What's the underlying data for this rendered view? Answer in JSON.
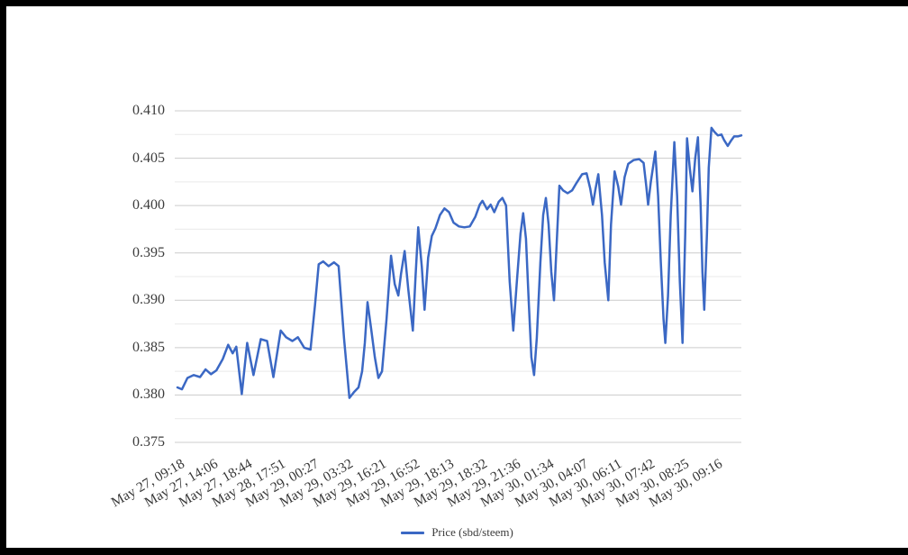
{
  "frame": {
    "border_color": "#000000",
    "background": "#ffffff"
  },
  "chart_data": {
    "type": "line",
    "title": "",
    "xlabel": "",
    "ylabel": "",
    "ylim": [
      0.375,
      0.41
    ],
    "y_ticks": [
      "0.375",
      "0.380",
      "0.385",
      "0.390",
      "0.395",
      "0.400",
      "0.405",
      "0.410"
    ],
    "y_minor_step": 0.0025,
    "grid": {
      "major_color": "#cccccc",
      "minor_color": "#e9e9e9",
      "vertical_gridlines": false
    },
    "axis_text_color": "#3c3c3c",
    "x_label_rotation_deg": -30,
    "x_labels": [
      "May 27, 09:18",
      "May 27, 14:06",
      "May 27, 18:44",
      "May 28, 17:51",
      "May 29, 00:27",
      "May 29, 03:32",
      "May 29, 16:21",
      "May 29, 16:52",
      "May 29, 18:13",
      "May 29, 18:32",
      "May 29, 21:36",
      "May 30, 01:34",
      "May 30, 04:07",
      "May 30, 06:11",
      "May 30, 07:42",
      "May 30, 08:25",
      "May 30, 09:16"
    ],
    "legend": {
      "position": "bottom",
      "label": "Price (sbd/steem)"
    },
    "series": [
      {
        "name": "Price (sbd/steem)",
        "color": "#3b68c4",
        "points": [
          [
            3,
            0.3808
          ],
          [
            8,
            0.3806
          ],
          [
            14,
            0.3818
          ],
          [
            21,
            0.3821
          ],
          [
            28,
            0.3819
          ],
          [
            34,
            0.3827
          ],
          [
            40,
            0.3822
          ],
          [
            46,
            0.3826
          ],
          [
            53,
            0.3838
          ],
          [
            59,
            0.3853
          ],
          [
            64,
            0.3844
          ],
          [
            68,
            0.3851
          ],
          [
            74,
            0.3801
          ],
          [
            80,
            0.3855
          ],
          [
            87,
            0.3821
          ],
          [
            95,
            0.3859
          ],
          [
            102,
            0.3857
          ],
          [
            109,
            0.3819
          ],
          [
            117,
            0.3868
          ],
          [
            123,
            0.3861
          ],
          [
            130,
            0.3857
          ],
          [
            136,
            0.3861
          ],
          [
            143,
            0.385
          ],
          [
            150,
            0.3848
          ],
          [
            155,
            0.3895
          ],
          [
            159,
            0.3938
          ],
          [
            164,
            0.3941
          ],
          [
            170,
            0.3936
          ],
          [
            176,
            0.394
          ],
          [
            181,
            0.3936
          ],
          [
            187,
            0.386
          ],
          [
            193,
            0.3797
          ],
          [
            198,
            0.3803
          ],
          [
            203,
            0.3808
          ],
          [
            207,
            0.3825
          ],
          [
            210,
            0.3855
          ],
          [
            213,
            0.3898
          ],
          [
            217,
            0.387
          ],
          [
            221,
            0.384
          ],
          [
            225,
            0.3818
          ],
          [
            229,
            0.3825
          ],
          [
            234,
            0.388
          ],
          [
            239,
            0.3947
          ],
          [
            243,
            0.3917
          ],
          [
            247,
            0.3905
          ],
          [
            250,
            0.3928
          ],
          [
            254,
            0.3952
          ],
          [
            258,
            0.3912
          ],
          [
            263,
            0.3868
          ],
          [
            266,
            0.3925
          ],
          [
            269,
            0.3977
          ],
          [
            273,
            0.3935
          ],
          [
            276,
            0.389
          ],
          [
            280,
            0.3945
          ],
          [
            284,
            0.3968
          ],
          [
            288,
            0.3976
          ],
          [
            293,
            0.399
          ],
          [
            298,
            0.3997
          ],
          [
            303,
            0.3993
          ],
          [
            308,
            0.3982
          ],
          [
            314,
            0.3978
          ],
          [
            320,
            0.3977
          ],
          [
            326,
            0.3978
          ],
          [
            332,
            0.3988
          ],
          [
            337,
            0.4001
          ],
          [
            340,
            0.4005
          ],
          [
            345,
            0.3996
          ],
          [
            349,
            0.4001
          ],
          [
            353,
            0.3993
          ],
          [
            358,
            0.4004
          ],
          [
            362,
            0.4008
          ],
          [
            366,
            0.4
          ],
          [
            370,
            0.392
          ],
          [
            374,
            0.3868
          ],
          [
            378,
            0.392
          ],
          [
            382,
            0.397
          ],
          [
            385,
            0.3992
          ],
          [
            388,
            0.3965
          ],
          [
            391,
            0.39
          ],
          [
            394,
            0.384
          ],
          [
            397,
            0.3821
          ],
          [
            400,
            0.386
          ],
          [
            404,
            0.394
          ],
          [
            407,
            0.399
          ],
          [
            410,
            0.4008
          ],
          [
            413,
            0.398
          ],
          [
            416,
            0.393
          ],
          [
            419,
            0.39
          ],
          [
            422,
            0.396
          ],
          [
            425,
            0.4021
          ],
          [
            429,
            0.4016
          ],
          [
            434,
            0.4013
          ],
          [
            439,
            0.4016
          ],
          [
            444,
            0.4024
          ],
          [
            450,
            0.4033
          ],
          [
            455,
            0.4034
          ],
          [
            459,
            0.4018
          ],
          [
            462,
            0.4001
          ],
          [
            465,
            0.4018
          ],
          [
            468,
            0.4033
          ],
          [
            472,
            0.399
          ],
          [
            475,
            0.394
          ],
          [
            479,
            0.39
          ],
          [
            482,
            0.398
          ],
          [
            486,
            0.4036
          ],
          [
            490,
            0.402
          ],
          [
            493,
            0.4001
          ],
          [
            497,
            0.403
          ],
          [
            501,
            0.4044
          ],
          [
            507,
            0.4048
          ],
          [
            513,
            0.4049
          ],
          [
            518,
            0.4045
          ],
          [
            521,
            0.402
          ],
          [
            523,
            0.4001
          ],
          [
            526,
            0.4025
          ],
          [
            531,
            0.4057
          ],
          [
            534,
            0.401
          ],
          [
            537,
            0.394
          ],
          [
            540,
            0.388
          ],
          [
            542,
            0.3855
          ],
          [
            545,
            0.3905
          ],
          [
            548,
            0.399
          ],
          [
            552,
            0.4067
          ],
          [
            555,
            0.401
          ],
          [
            558,
            0.392
          ],
          [
            561,
            0.3855
          ],
          [
            564,
            0.397
          ],
          [
            566,
            0.4071
          ],
          [
            569,
            0.404
          ],
          [
            572,
            0.4015
          ],
          [
            575,
            0.405
          ],
          [
            578,
            0.4072
          ],
          [
            581,
            0.4
          ],
          [
            583,
            0.393
          ],
          [
            585,
            0.389
          ],
          [
            588,
            0.397
          ],
          [
            590,
            0.404
          ],
          [
            593,
            0.4082
          ],
          [
            596,
            0.4078
          ],
          [
            600,
            0.4074
          ],
          [
            604,
            0.4075
          ],
          [
            607,
            0.4069
          ],
          [
            611,
            0.4063
          ],
          [
            615,
            0.4069
          ],
          [
            618,
            0.4073
          ],
          [
            622,
            0.4073
          ],
          [
            626,
            0.4074
          ]
        ]
      }
    ]
  }
}
